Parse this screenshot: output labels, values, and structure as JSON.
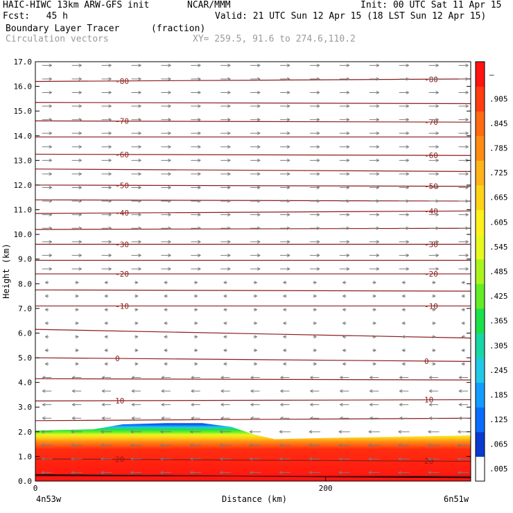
{
  "header": {
    "model": "HAIC-HIWC 13km ARW-GFS init",
    "org": "NCAR/MMM",
    "init": "Init: 00 UTC Sat 11 Apr 15",
    "fcst": "Fcst:   45 h",
    "valid": "Valid: 21 UTC Sun 12 Apr 15 (18 LST Sun 12 Apr 15)",
    "field": "Boundary Layer Tracer",
    "units": "(fraction)",
    "vectors": "Circulation vectors",
    "xy": "XY= 259.5, 91.6 to 274.6,110.2"
  },
  "chart_data": {
    "type": "heatmap",
    "xlabel": "Distance (km)",
    "ylabel": "Height (km)",
    "ylim": [
      0,
      17
    ],
    "xlim": [
      0,
      300
    ],
    "x_ticks": [
      0,
      200
    ],
    "y_ticks": [
      "0.0",
      "1.0",
      "2.0",
      "3.0",
      "4.0",
      "5.0",
      "6.0",
      "7.0",
      "8.0",
      "9.0",
      "10.0",
      "11.0",
      "12.0",
      "13.0",
      "14.0",
      "15.0",
      "16.0",
      "17.0"
    ],
    "x_end_labels": {
      "left": "4n53w",
      "right": "6n51w"
    },
    "colorbar": {
      "labels": [
        ".005",
        ".065",
        ".125",
        ".185",
        ".245",
        ".305",
        ".365",
        ".425",
        ".485",
        ".545",
        ".605",
        ".665",
        ".725",
        ".785",
        ".845",
        ".905",
        "–"
      ],
      "colors": [
        "#ffffff",
        "#0a3ad0",
        "#0a6cff",
        "#139cff",
        "#22c8e6",
        "#19d6a6",
        "#1ce14a",
        "#64ec26",
        "#a9f41d",
        "#e6f820",
        "#fff01c",
        "#ffd21a",
        "#ffb31a",
        "#ff8c15",
        "#ff6a12",
        "#ff3d10",
        "#ff1410"
      ]
    },
    "temperature_contours": {
      "color": "#8b1a1a",
      "lines": [
        {
          "label": "-80",
          "left": 16.2,
          "right": 16.3
        },
        {
          "label": "",
          "left": 15.35,
          "right": 15.3
        },
        {
          "label": "-70",
          "left": 14.6,
          "right": 14.55
        },
        {
          "label": "",
          "left": 13.95,
          "right": 13.95
        },
        {
          "label": "-60",
          "left": 13.25,
          "right": 13.2
        },
        {
          "label": "",
          "left": 12.65,
          "right": 12.55
        },
        {
          "label": "-50",
          "left": 12.0,
          "right": 11.95
        },
        {
          "label": "",
          "left": 11.4,
          "right": 11.35
        },
        {
          "label": "-40",
          "left": 10.85,
          "right": 10.95
        },
        {
          "label": "",
          "left": 10.2,
          "right": 10.25
        },
        {
          "label": "-30",
          "left": 9.6,
          "right": 9.6
        },
        {
          "label": "",
          "left": 8.95,
          "right": 8.95
        },
        {
          "label": "-20",
          "left": 8.4,
          "right": 8.4
        },
        {
          "label": "",
          "left": 7.75,
          "right": 7.7
        },
        {
          "label": "-10",
          "left": 7.1,
          "right": 7.1
        },
        {
          "label": "",
          "left": 6.15,
          "right": 5.8
        },
        {
          "label": "0",
          "left": 5.0,
          "right": 4.85
        },
        {
          "label": "",
          "left": 4.15,
          "right": 4.1
        },
        {
          "label": "10",
          "left": 3.25,
          "right": 3.3
        },
        {
          "label": "",
          "left": 2.45,
          "right": 2.55
        },
        {
          "label": "20",
          "left": 0.9,
          "right": 0.8
        },
        {
          "label": "",
          "left": 0.2,
          "right": 0.2
        }
      ]
    },
    "tracer_layer": {
      "description_points_km": [
        [
          0,
          2.05
        ],
        [
          40,
          2.1
        ],
        [
          60,
          2.3
        ],
        [
          90,
          2.35
        ],
        [
          115,
          2.35
        ],
        [
          135,
          2.2
        ],
        [
          150,
          1.9
        ],
        [
          165,
          1.7
        ],
        [
          200,
          1.75
        ],
        [
          250,
          1.8
        ],
        [
          300,
          1.85
        ]
      ]
    },
    "wind_regimes": [
      {
        "from_km": 0.0,
        "to_km": 4.7,
        "direction": "easterly"
      },
      {
        "from_km": 4.7,
        "to_km": 8.5,
        "direction": "weak"
      },
      {
        "from_km": 8.5,
        "to_km": 17.0,
        "direction": "westerly"
      }
    ]
  }
}
